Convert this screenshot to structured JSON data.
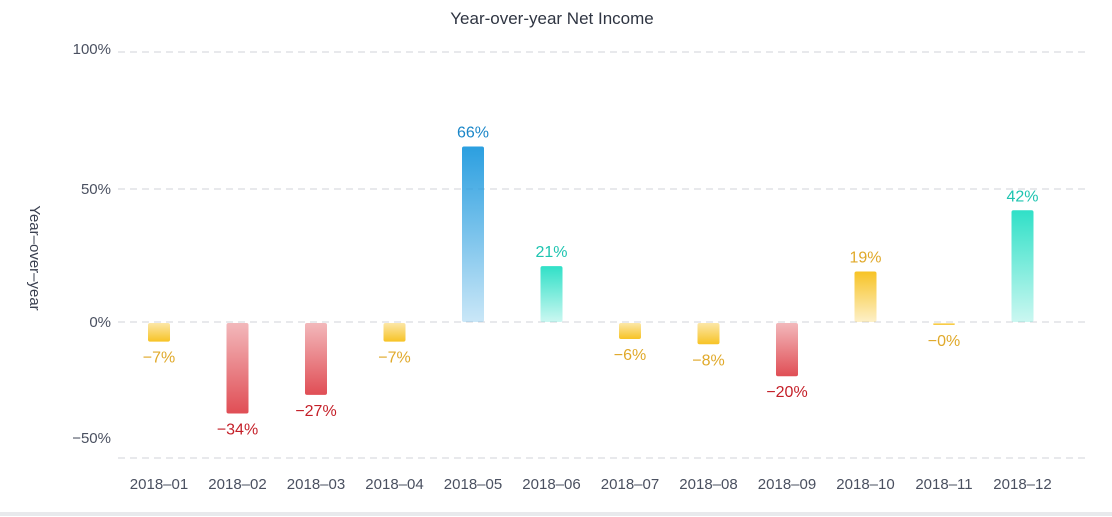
{
  "chart_data": {
    "type": "bar",
    "title": "Year-over-year Net Income",
    "ylabel": "Year–over–year",
    "xlabel": "",
    "categories": [
      "2018–01",
      "2018–02",
      "2018–03",
      "2018–04",
      "2018–05",
      "2018–06",
      "2018–07",
      "2018–08",
      "2018–09",
      "2018–10",
      "2018–11",
      "2018–12"
    ],
    "values": [
      -7,
      -34,
      -27,
      -7,
      66,
      21,
      -6,
      -8,
      -20,
      19,
      -0.5,
      42
    ],
    "data_labels": [
      "−7%",
      "−34%",
      "−27%",
      "−7%",
      "66%",
      "21%",
      "−6%",
      "−8%",
      "−20%",
      "19%",
      "−0%",
      "42%"
    ],
    "bar_colors": [
      "#f7c325",
      "#e04e55",
      "#e04e55",
      "#f7c325",
      "#2b9fe0",
      "#30e0c7",
      "#f7c325",
      "#f7c325",
      "#e04e55",
      "#f7c325",
      "#f7c325",
      "#30e0c7"
    ],
    "label_colors": [
      "#e0a92a",
      "#c41f28",
      "#c41f28",
      "#e0a92a",
      "#1a86c8",
      "#1ec4b0",
      "#e0a92a",
      "#e0a92a",
      "#c41f28",
      "#e0a92a",
      "#e0a92a",
      "#1ec4b0"
    ],
    "yticks": [
      100,
      50,
      0,
      -50
    ],
    "ytick_labels": [
      "100%",
      "50%",
      "0%",
      "−50%"
    ],
    "ylim": [
      -50,
      100
    ],
    "grid": true,
    "legend": "none"
  }
}
